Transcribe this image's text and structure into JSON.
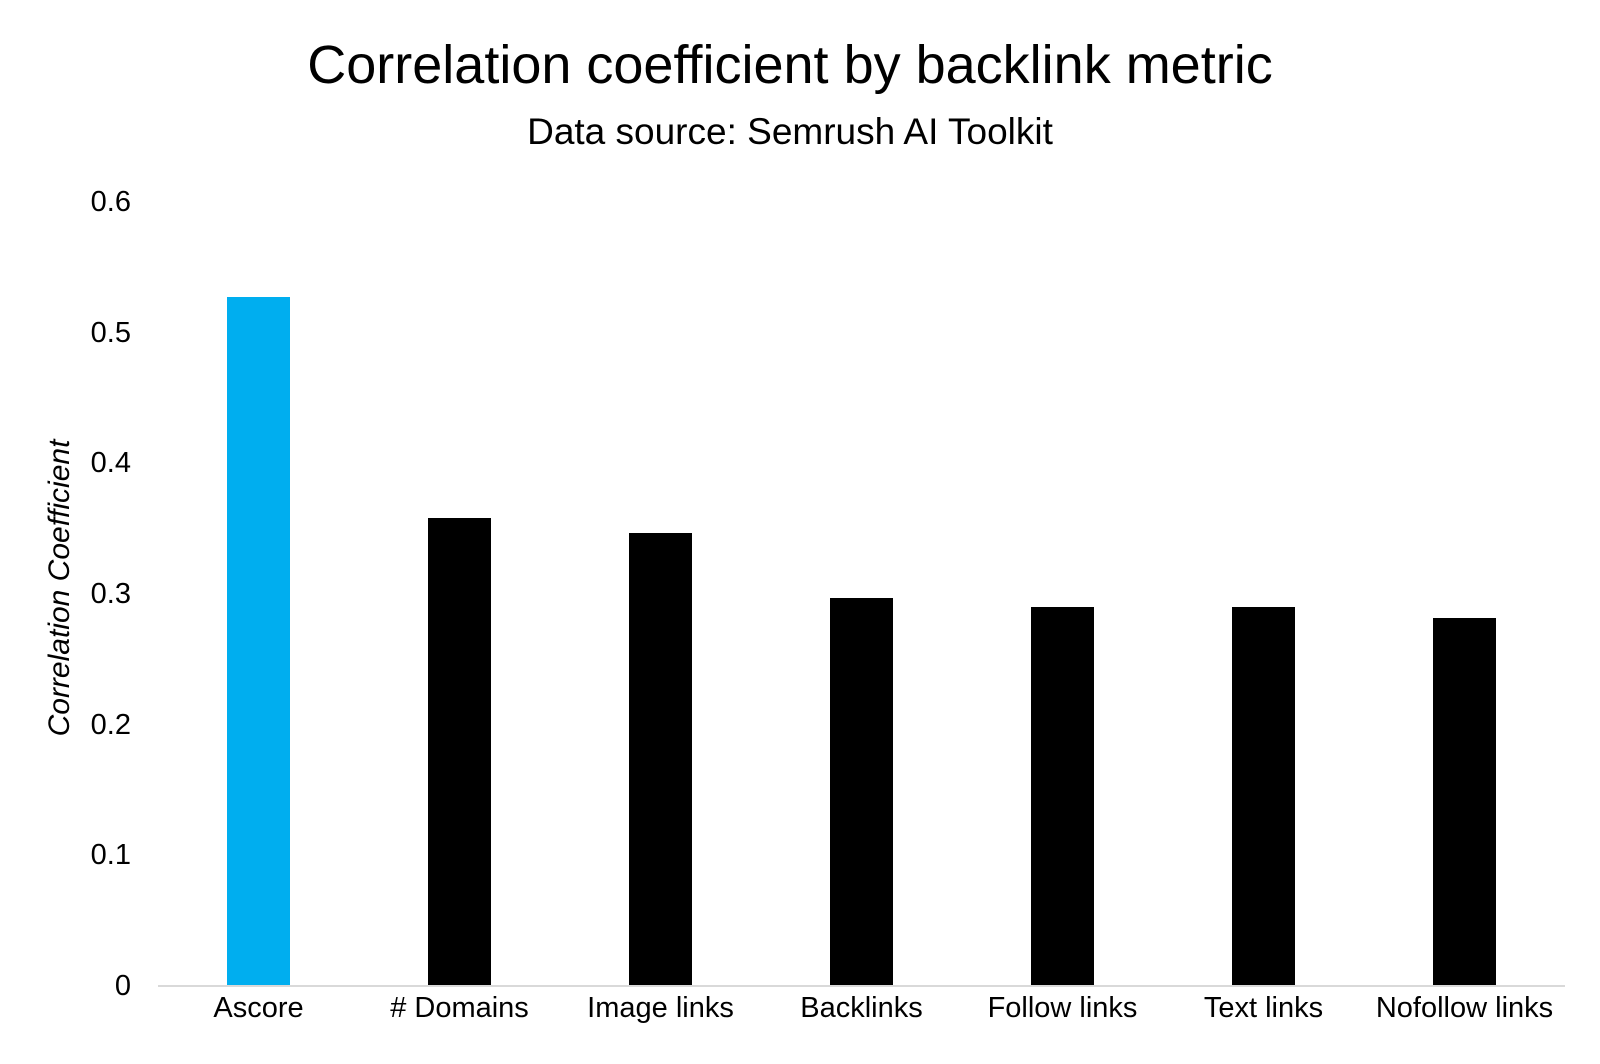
{
  "chart_data": {
    "type": "bar",
    "title": "Correlation coefficient by backlink metric",
    "subtitle": "Data source: Semrush AI Toolkit",
    "xlabel": "",
    "ylabel": "Correlation Coefficient",
    "categories": [
      "Ascore",
      "# Domains",
      "Image links",
      "Backlinks",
      "Follow links",
      "Text links",
      "Nofollow links"
    ],
    "values": [
      0.527,
      0.358,
      0.347,
      0.297,
      0.29,
      0.29,
      0.282
    ],
    "bar_colors": [
      "#00AEEF",
      "#000000",
      "#000000",
      "#000000",
      "#000000",
      "#000000",
      "#000000"
    ],
    "highlight_index": 0,
    "ylim": [
      0,
      0.6
    ],
    "y_tick_labels": [
      "0",
      "0.1",
      "0.2",
      "0.3",
      "0.4",
      "0.5",
      "0.6"
    ],
    "grid": false,
    "legend": false
  },
  "colors": {
    "bar_highlight": "#00AEEF",
    "bar_default": "#000000",
    "axis_line": "#D9D9D9",
    "text": "#000000",
    "background": "#FFFFFF"
  }
}
